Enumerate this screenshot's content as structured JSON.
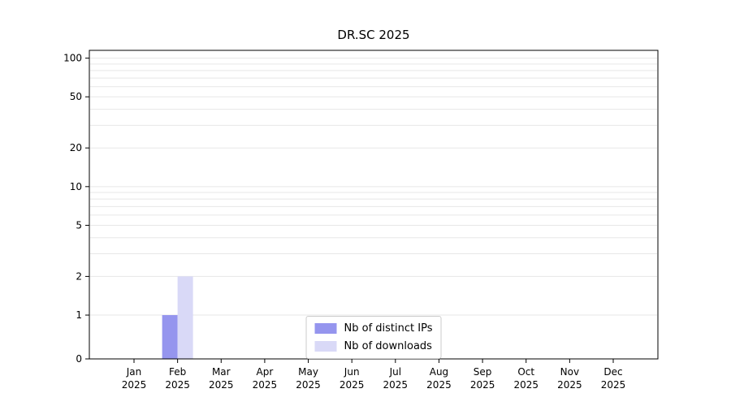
{
  "chart_data": {
    "type": "bar",
    "title": "DR.SC 2025",
    "categories": [
      "Jan",
      "Feb",
      "Mar",
      "Apr",
      "May",
      "Jun",
      "Jul",
      "Aug",
      "Sep",
      "Oct",
      "Nov",
      "Dec"
    ],
    "year_label": "2025",
    "series": [
      {
        "name": "Nb of distinct IPs",
        "color": "#9595ee",
        "values": [
          0,
          1,
          0,
          0,
          0,
          0,
          0,
          0,
          0,
          0,
          0,
          0
        ]
      },
      {
        "name": "Nb of downloads",
        "color": "#d9d9f7",
        "values": [
          0,
          2,
          0,
          0,
          0,
          0,
          0,
          0,
          0,
          0,
          0,
          0
        ]
      }
    ],
    "yticks": [
      0,
      1,
      2,
      5,
      10,
      20,
      50,
      100
    ],
    "minor_yticks": [
      3,
      4,
      6,
      7,
      8,
      9,
      30,
      40,
      60,
      70,
      80,
      90
    ],
    "yscale": "symlog",
    "ylim": [
      0,
      115
    ],
    "xlabel": "",
    "ylabel": "",
    "grid": "horizontal",
    "legend_position": "bottom-center"
  }
}
